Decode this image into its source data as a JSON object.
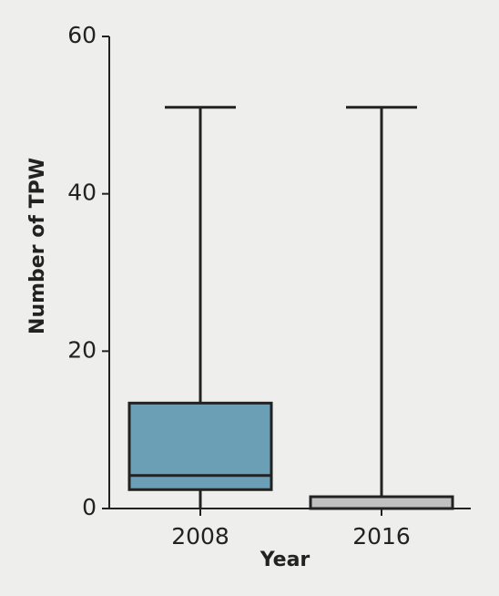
{
  "chart_data": {
    "type": "box",
    "x_label": "Year",
    "y_label": "Number of TPW",
    "categories": [
      "2008",
      "2016"
    ],
    "boxes": [
      {
        "min": 0,
        "q1": 2.4,
        "median": 4.2,
        "q3": 13.4,
        "max": 51,
        "color": "#6a9fb5"
      },
      {
        "min": 0,
        "q1": 0,
        "median": 0,
        "q3": 1.5,
        "max": 51,
        "color": "#c0c0c0"
      }
    ],
    "ylim": [
      0,
      60
    ],
    "yticks": [
      0,
      20,
      40,
      60
    ]
  }
}
